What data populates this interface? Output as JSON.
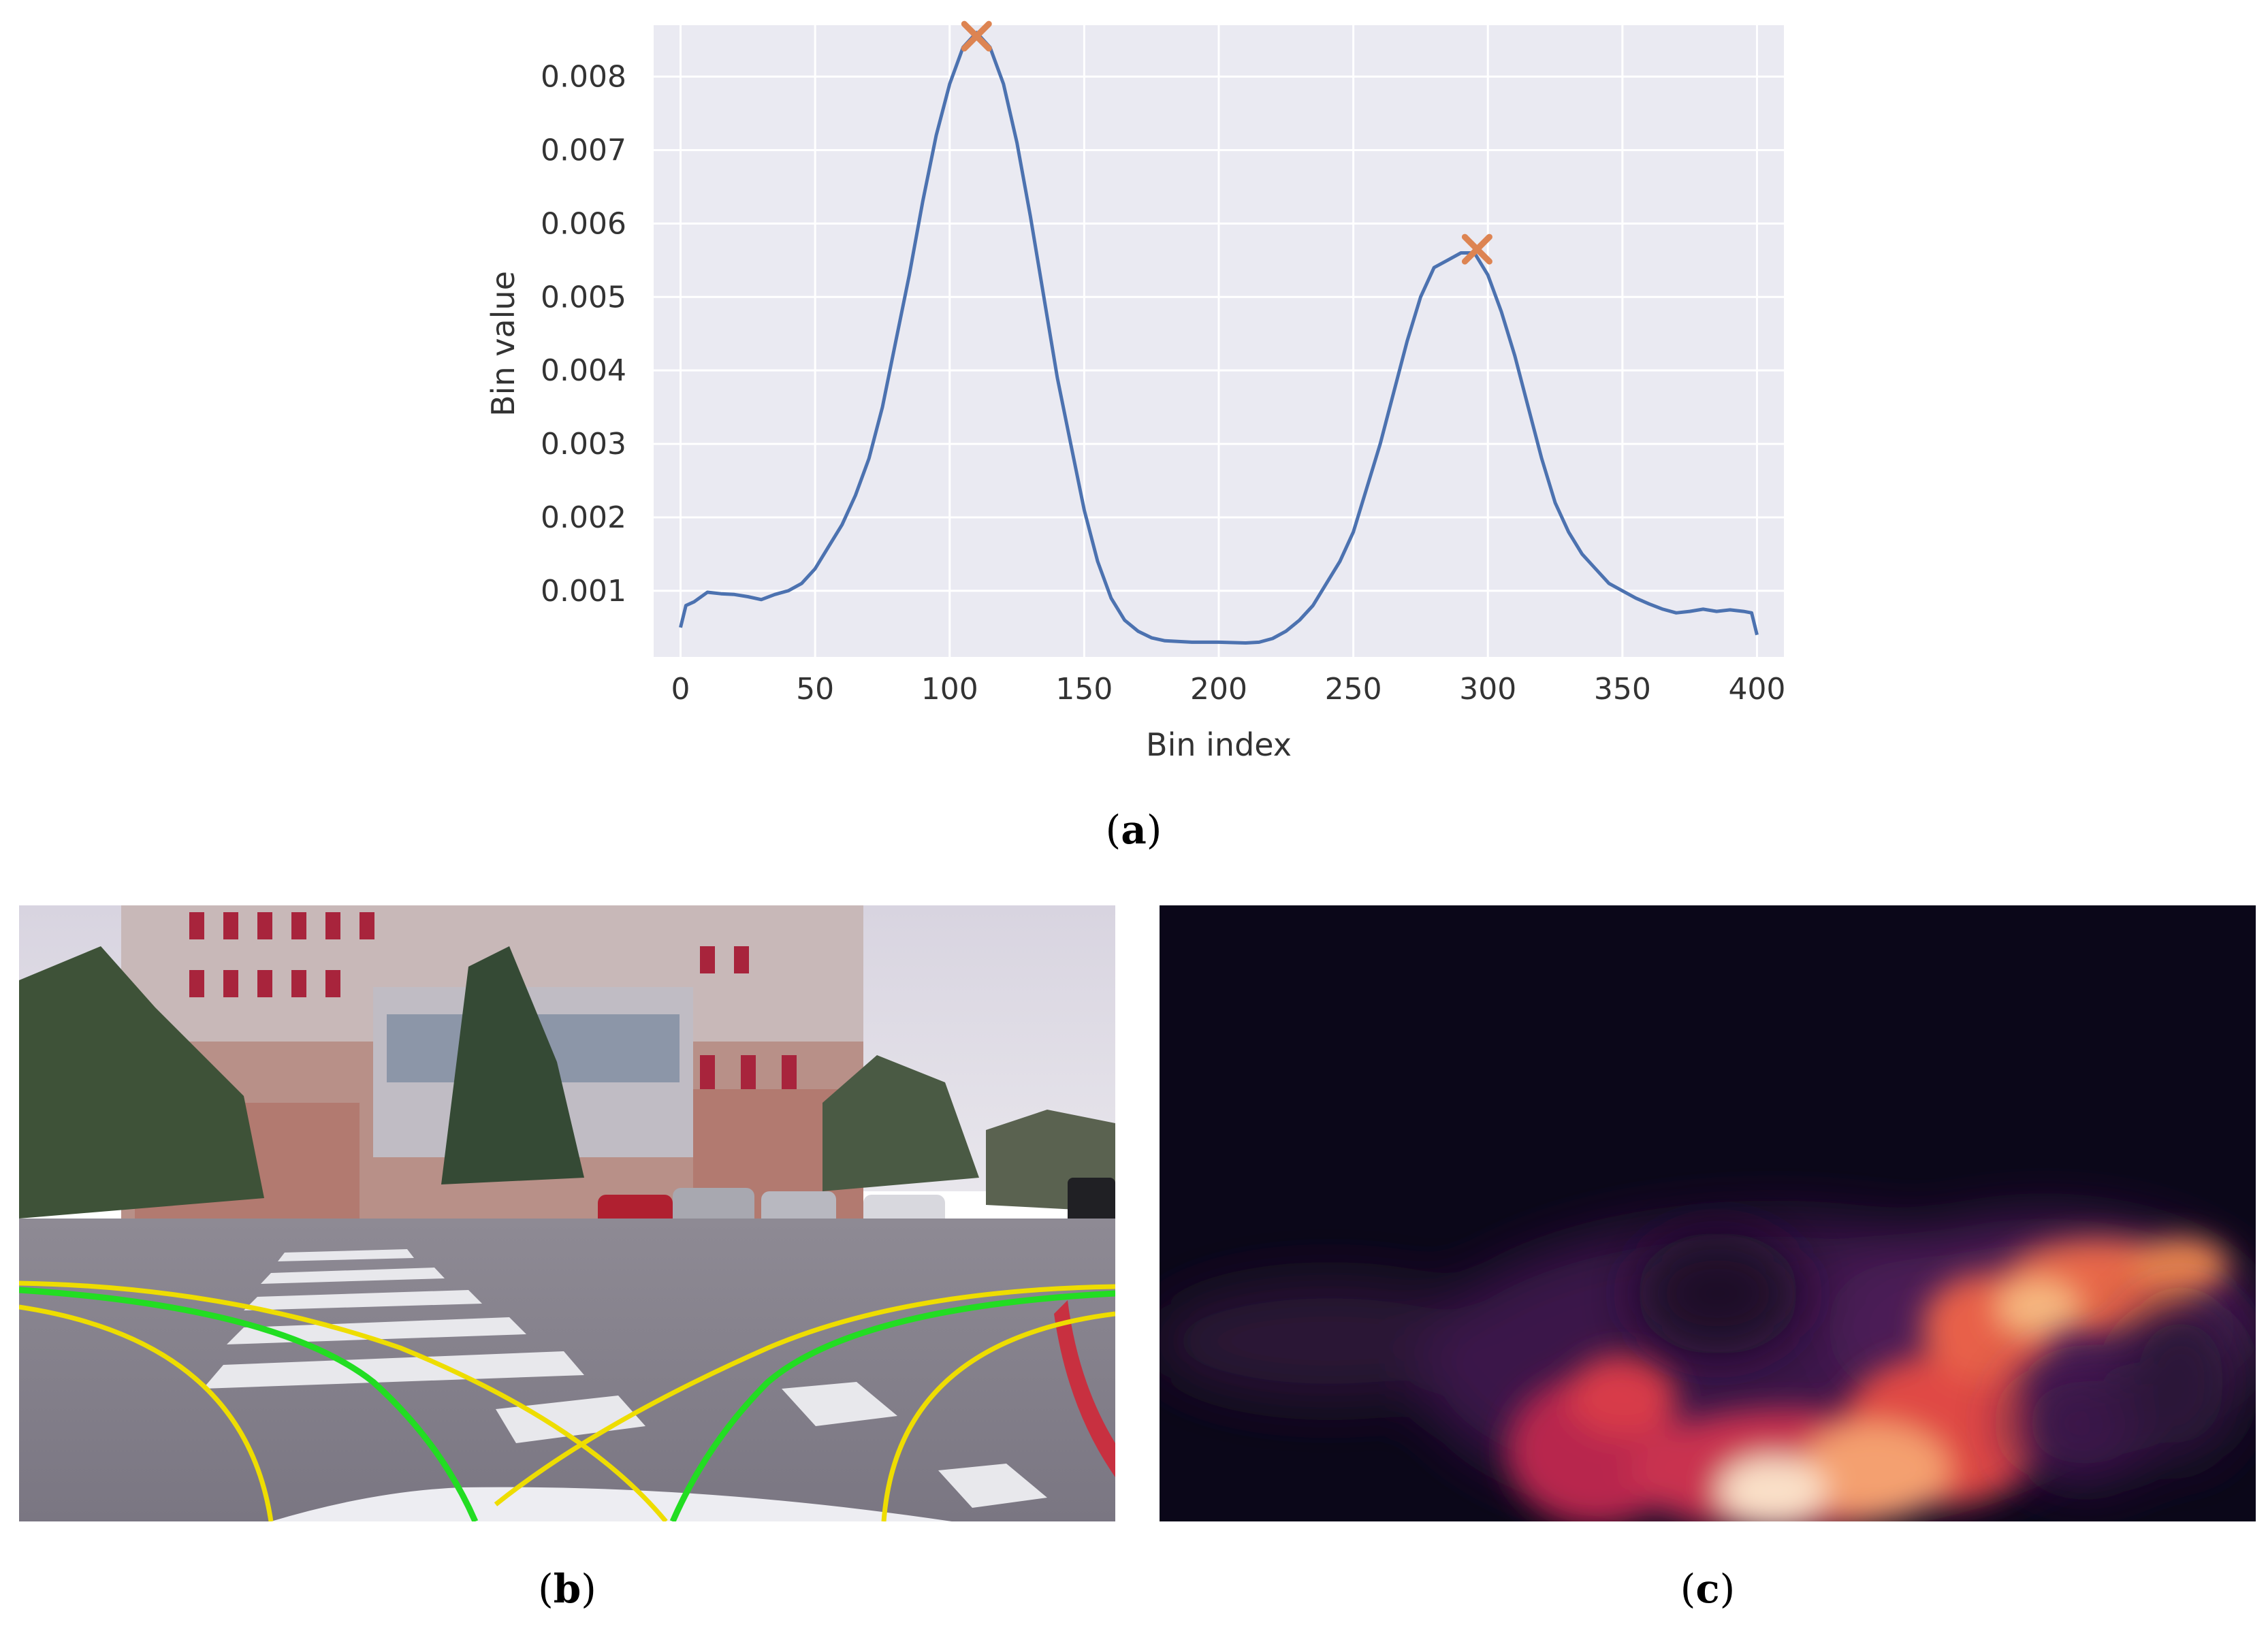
{
  "chart_data": {
    "type": "line",
    "xlabel": "Bin index",
    "ylabel": "Bin value",
    "xlim": [
      -10,
      410
    ],
    "ylim": [
      0.0001,
      0.0087
    ],
    "xticks": [
      0,
      50,
      100,
      150,
      200,
      250,
      300,
      350,
      400
    ],
    "xtick_labels": [
      "0",
      "50",
      "100",
      "150",
      "200",
      "250",
      "300",
      "350",
      "400"
    ],
    "yticks": [
      0.001,
      0.002,
      0.003,
      0.004,
      0.005,
      0.006,
      0.007,
      0.008
    ],
    "ytick_labels": [
      "0.001",
      "0.002",
      "0.003",
      "0.004",
      "0.005",
      "0.006",
      "0.007",
      "0.008"
    ],
    "grid": true,
    "background": "#EAEAF2",
    "series": [
      {
        "color": "#4C72B0",
        "x": [
          0,
          2,
          5,
          10,
          15,
          20,
          25,
          30,
          35,
          40,
          45,
          50,
          55,
          60,
          65,
          70,
          75,
          80,
          85,
          90,
          95,
          100,
          105,
          110,
          115,
          120,
          125,
          130,
          135,
          140,
          145,
          150,
          155,
          160,
          165,
          170,
          175,
          180,
          190,
          200,
          210,
          215,
          220,
          225,
          230,
          235,
          240,
          245,
          250,
          255,
          260,
          265,
          270,
          275,
          280,
          285,
          290,
          295,
          300,
          305,
          310,
          315,
          320,
          325,
          330,
          335,
          340,
          345,
          350,
          355,
          360,
          365,
          370,
          375,
          380,
          385,
          390,
          395,
          398,
          400
        ],
        "y": [
          0.0005,
          0.0008,
          0.00085,
          0.00098,
          0.00096,
          0.00095,
          0.00092,
          0.00088,
          0.00095,
          0.001,
          0.0011,
          0.0013,
          0.0016,
          0.0019,
          0.0023,
          0.0028,
          0.0035,
          0.0044,
          0.0053,
          0.0063,
          0.0072,
          0.0079,
          0.0084,
          0.0086,
          0.0084,
          0.0079,
          0.0071,
          0.0061,
          0.005,
          0.0039,
          0.003,
          0.0021,
          0.0014,
          0.0009,
          0.0006,
          0.00045,
          0.00036,
          0.00032,
          0.0003,
          0.0003,
          0.00029,
          0.0003,
          0.00035,
          0.00045,
          0.0006,
          0.0008,
          0.0011,
          0.0014,
          0.0018,
          0.0024,
          0.003,
          0.0037,
          0.0044,
          0.005,
          0.0054,
          0.0055,
          0.0056,
          0.0056,
          0.0053,
          0.0048,
          0.0042,
          0.0035,
          0.0028,
          0.0022,
          0.0018,
          0.0015,
          0.0013,
          0.0011,
          0.001,
          0.0009,
          0.00082,
          0.00075,
          0.0007,
          0.00072,
          0.00075,
          0.00072,
          0.00074,
          0.00072,
          0.0007,
          0.0004
        ]
      }
    ],
    "peaks": {
      "color": "#DD8452",
      "points": [
        {
          "x": 110,
          "y": 0.00855
        },
        {
          "x": 296,
          "y": 0.00565
        }
      ]
    }
  },
  "captions": {
    "a": "a",
    "b": "b",
    "c": "c"
  },
  "colors": {
    "green_lane": "#22DD22",
    "yellow_lane": "#EEDD00"
  }
}
